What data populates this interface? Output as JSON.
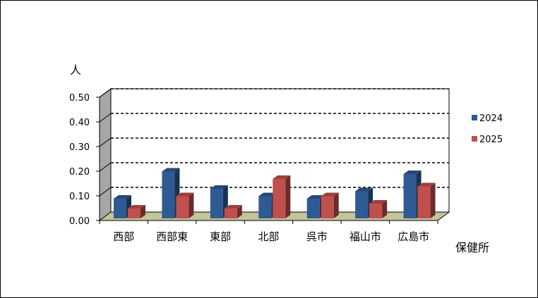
{
  "chart_data": {
    "type": "bar",
    "ylabel": "人",
    "xlabel": "保健所",
    "categories": [
      "西部",
      "西部東",
      "東部",
      "北部",
      "呉市",
      "福山市",
      "広島市"
    ],
    "series": [
      {
        "name": "2024",
        "values": [
          0.08,
          0.19,
          0.12,
          0.09,
          0.08,
          0.11,
          0.18
        ],
        "color": "#2F5A94"
      },
      {
        "name": "2025",
        "values": [
          0.04,
          0.09,
          0.04,
          0.16,
          0.09,
          0.06,
          0.13
        ],
        "color": "#C0504D"
      }
    ],
    "ylim": [
      0,
      0.5
    ],
    "yticks": [
      "0.00",
      "0.10",
      "0.20",
      "0.30",
      "0.40",
      "0.50"
    ],
    "grid": true,
    "legend": "right"
  }
}
